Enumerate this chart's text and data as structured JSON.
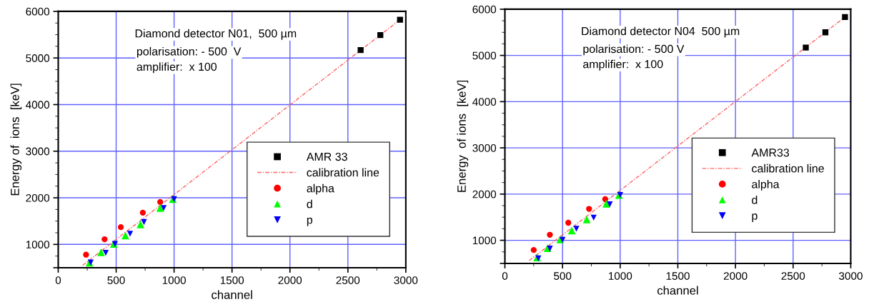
{
  "chart_data": [
    {
      "type": "scatter",
      "xlabel": "channel",
      "ylabel": "Energy of  ions  [keV]",
      "xlim": [
        0,
        3000
      ],
      "ylim": [
        500,
        6000
      ],
      "xticks": [
        0,
        500,
        1000,
        1500,
        2000,
        2500,
        3000
      ],
      "yticks": [
        {
          "value": 500,
          "label": null
        },
        1000,
        2000,
        3000,
        4000,
        5000,
        6000
      ],
      "grid": true,
      "legend": "lower right",
      "annotations": [
        "Diamond detector N01,  500 µm",
        "polarisation: - 500  V",
        "amplifier:  x 100"
      ],
      "series": [
        {
          "name": "AMR 33",
          "marker": "square",
          "color": "#000000",
          "x": [
            2610,
            2780,
            2950
          ],
          "values": [
            5170,
            5490,
            5820
          ]
        },
        {
          "name": "calibration line",
          "type": "line",
          "line_style": "dashed",
          "marker": "none",
          "color": "#ff6060",
          "x": [
            210,
            2950
          ],
          "values": [
            550,
            5820
          ]
        },
        {
          "name": "alpha",
          "marker": "circle",
          "color": "#ff0000",
          "x": [
            240,
            400,
            540,
            730,
            880
          ],
          "values": [
            780,
            1110,
            1370,
            1680,
            1910
          ]
        },
        {
          "name": "d",
          "marker": "triangle",
          "color": "#00ff00",
          "x": [
            270,
            370,
            480,
            580,
            710,
            880,
            990
          ],
          "values": [
            610,
            830,
            1010,
            1190,
            1430,
            1780,
            1970
          ]
        },
        {
          "name": "p",
          "marker": "triangle_down",
          "color": "#0000ff",
          "x": [
            280,
            410,
            490,
            620,
            740,
            910,
            1000
          ],
          "values": [
            610,
            820,
            1010,
            1230,
            1480,
            1780,
            1970
          ]
        }
      ]
    },
    {
      "type": "scatter",
      "xlabel": "channel",
      "ylabel": "Energy  of ions  [keV]",
      "xlim": [
        0,
        3000
      ],
      "ylim": [
        500,
        6000
      ],
      "xticks": [
        0,
        500,
        1000,
        1500,
        2000,
        2500,
        3000
      ],
      "yticks": [
        {
          "value": 500,
          "label": null
        },
        1000,
        2000,
        3000,
        4000,
        5000,
        6000
      ],
      "grid": true,
      "legend": "lower right",
      "annotations": [
        "Diamond detector N04  500 µm",
        "polarisation: - 500 V",
        "amplifier:  x 100"
      ],
      "series": [
        {
          "name": "AMR33",
          "marker": "square",
          "color": "#000000",
          "x": [
            2610,
            2780,
            2950
          ],
          "values": [
            5170,
            5500,
            5830
          ]
        },
        {
          "name": "calibration line",
          "type": "line",
          "line_style": "dashed",
          "marker": "none",
          "color": "#ff6060",
          "x": [
            210,
            2950
          ],
          "values": [
            560,
            5830
          ]
        },
        {
          "name": "alpha",
          "marker": "circle",
          "color": "#ff0000",
          "x": [
            250,
            390,
            550,
            730,
            870
          ],
          "values": [
            790,
            1120,
            1380,
            1680,
            1890
          ]
        },
        {
          "name": "d",
          "marker": "triangle",
          "color": "#00ff00",
          "x": [
            280,
            370,
            480,
            580,
            710,
            880,
            990
          ],
          "values": [
            630,
            830,
            1020,
            1210,
            1450,
            1790,
            1980
          ]
        },
        {
          "name": "p",
          "marker": "triangle_down",
          "color": "#0000ff",
          "x": [
            290,
            390,
            500,
            620,
            770,
            910,
            1000
          ],
          "values": [
            610,
            820,
            1010,
            1250,
            1490,
            1780,
            1980
          ]
        }
      ]
    }
  ]
}
